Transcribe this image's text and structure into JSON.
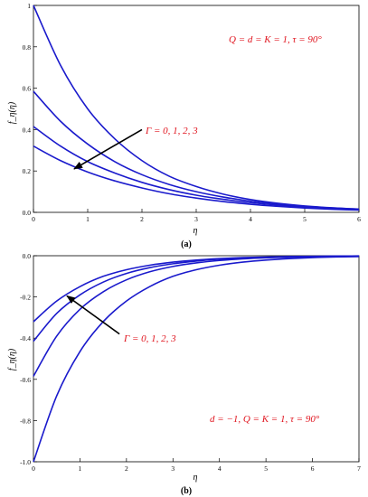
{
  "chart_data": [
    {
      "type": "line",
      "panel_label": "(a)",
      "xlabel": "η",
      "ylabel": "f_η(η)",
      "xlim": [
        0,
        6
      ],
      "ylim": [
        0,
        1
      ],
      "xticks": [
        "0",
        "1",
        "2",
        "3",
        "4",
        "5",
        "6"
      ],
      "yticks": [
        "0.0",
        "0.2",
        "0.4",
        "0.6",
        "0.8",
        "1"
      ],
      "annotation": "Q = d = K = 1, τ = 90°",
      "arrow_label": "Γ = 0, 1, 2, 3",
      "series": [
        {
          "x": [
            0,
            0.5,
            1,
            1.5,
            2,
            2.5,
            3,
            3.5,
            4,
            4.5,
            5,
            5.5,
            6
          ],
          "y": [
            1.0,
            0.71,
            0.5,
            0.355,
            0.25,
            0.175,
            0.125,
            0.088,
            0.062,
            0.044,
            0.031,
            0.022,
            0.016
          ]
        },
        {
          "x": [
            0,
            0.5,
            1,
            1.5,
            2,
            2.5,
            3,
            3.5,
            4,
            4.5,
            5,
            5.5,
            6
          ],
          "y": [
            0.585,
            0.44,
            0.33,
            0.245,
            0.182,
            0.135,
            0.1,
            0.074,
            0.054,
            0.04,
            0.029,
            0.021,
            0.015
          ]
        },
        {
          "x": [
            0,
            0.5,
            1,
            1.5,
            2,
            2.5,
            3,
            3.5,
            4,
            4.5,
            5,
            5.5,
            6
          ],
          "y": [
            0.415,
            0.32,
            0.245,
            0.19,
            0.145,
            0.11,
            0.083,
            0.063,
            0.047,
            0.035,
            0.026,
            0.019,
            0.013
          ]
        },
        {
          "x": [
            0,
            0.5,
            1,
            1.5,
            2,
            2.5,
            3,
            3.5,
            4,
            4.5,
            5,
            5.5,
            6
          ],
          "y": [
            0.32,
            0.25,
            0.195,
            0.152,
            0.118,
            0.09,
            0.069,
            0.052,
            0.039,
            0.029,
            0.021,
            0.015,
            0.011
          ]
        }
      ],
      "arrow": {
        "from": [
          2.0,
          0.4
        ],
        "to": [
          0.75,
          0.21
        ]
      },
      "colors": {
        "line": "#1a1acc",
        "text": "#e0141e",
        "arrow": "#000000"
      }
    },
    {
      "type": "line",
      "panel_label": "(b)",
      "xlabel": "η",
      "ylabel": "f_η(η)",
      "xlim": [
        0,
        7
      ],
      "ylim": [
        -1,
        0
      ],
      "xticks": [
        "0",
        "1",
        "2",
        "3",
        "4",
        "5",
        "6",
        "7"
      ],
      "yticks": [
        "-1.0",
        "-0.8",
        "-0.6",
        "-0.4",
        "-0.2",
        "0.0"
      ],
      "annotation": "d = −1, Q = K = 1, τ = 90°",
      "arrow_label": "Γ = 0, 1, 2, 3",
      "series": [
        {
          "x": [
            0,
            0.5,
            1,
            1.5,
            2,
            2.5,
            3,
            3.5,
            4,
            4.5,
            5,
            5.5,
            6,
            6.5,
            7
          ],
          "y": [
            -1.0,
            -0.68,
            -0.465,
            -0.32,
            -0.22,
            -0.15,
            -0.1,
            -0.068,
            -0.046,
            -0.031,
            -0.021,
            -0.014,
            -0.009,
            -0.006,
            -0.004
          ]
        },
        {
          "x": [
            0,
            0.5,
            1,
            1.5,
            2,
            2.5,
            3,
            3.5,
            4,
            4.5,
            5,
            5.5,
            6,
            6.5,
            7
          ],
          "y": [
            -0.585,
            -0.39,
            -0.26,
            -0.175,
            -0.117,
            -0.078,
            -0.052,
            -0.035,
            -0.023,
            -0.015,
            -0.01,
            -0.007,
            -0.005,
            -0.003,
            -0.002
          ]
        },
        {
          "x": [
            0,
            0.5,
            1,
            1.5,
            2,
            2.5,
            3,
            3.5,
            4,
            4.5,
            5,
            5.5,
            6,
            6.5,
            7
          ],
          "y": [
            -0.415,
            -0.28,
            -0.19,
            -0.128,
            -0.086,
            -0.058,
            -0.039,
            -0.026,
            -0.017,
            -0.012,
            -0.008,
            -0.005,
            -0.004,
            -0.002,
            -0.002
          ]
        },
        {
          "x": [
            0,
            0.5,
            1,
            1.5,
            2,
            2.5,
            3,
            3.5,
            4,
            4.5,
            5,
            5.5,
            6,
            6.5,
            7
          ],
          "y": [
            -0.32,
            -0.22,
            -0.15,
            -0.1,
            -0.068,
            -0.046,
            -0.031,
            -0.021,
            -0.014,
            -0.009,
            -0.006,
            -0.004,
            -0.003,
            -0.002,
            -0.001
          ]
        }
      ],
      "arrow": {
        "from": [
          1.85,
          -0.38
        ],
        "to": [
          0.72,
          -0.195
        ]
      },
      "colors": {
        "line": "#1a1acc",
        "text": "#e0141e",
        "arrow": "#000000"
      }
    }
  ]
}
